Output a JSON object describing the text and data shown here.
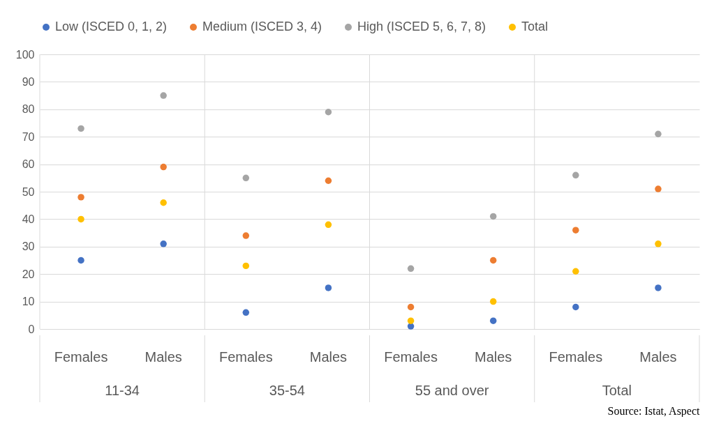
{
  "chart_data": {
    "type": "scatter",
    "categories": [
      "Females",
      "Males",
      "Females",
      "Males",
      "Females",
      "Males",
      "Females",
      "Males"
    ],
    "series": [
      {
        "name": "Low (ISCED 0, 1, 2)",
        "color": "#4472c4",
        "values": [
          25,
          31,
          6,
          15,
          1,
          3,
          8,
          15
        ]
      },
      {
        "name": "Medium (ISCED 3, 4)",
        "color": "#ed7d31",
        "values": [
          48,
          59,
          34,
          54,
          8,
          25,
          36,
          51
        ]
      },
      {
        "name": "High (ISCED 5, 6, 7, 8)",
        "color": "#a5a5a5",
        "values": [
          73,
          85,
          55,
          79,
          22,
          41,
          56,
          71
        ]
      },
      {
        "name": "Total",
        "color": "#ffc000",
        "values": [
          40,
          46,
          23,
          38,
          3,
          10,
          21,
          31
        ]
      }
    ],
    "annotations": [
      "11-34",
      "35-54",
      "55 and over",
      "Total",
      "Source: Istat, Aspect"
    ],
    "ylim": [
      0,
      100
    ],
    "yticks": [
      0,
      10,
      20,
      30,
      40,
      50,
      60,
      70,
      80,
      90,
      100
    ],
    "grid": "y",
    "legend": "top",
    "marker": "circle"
  }
}
